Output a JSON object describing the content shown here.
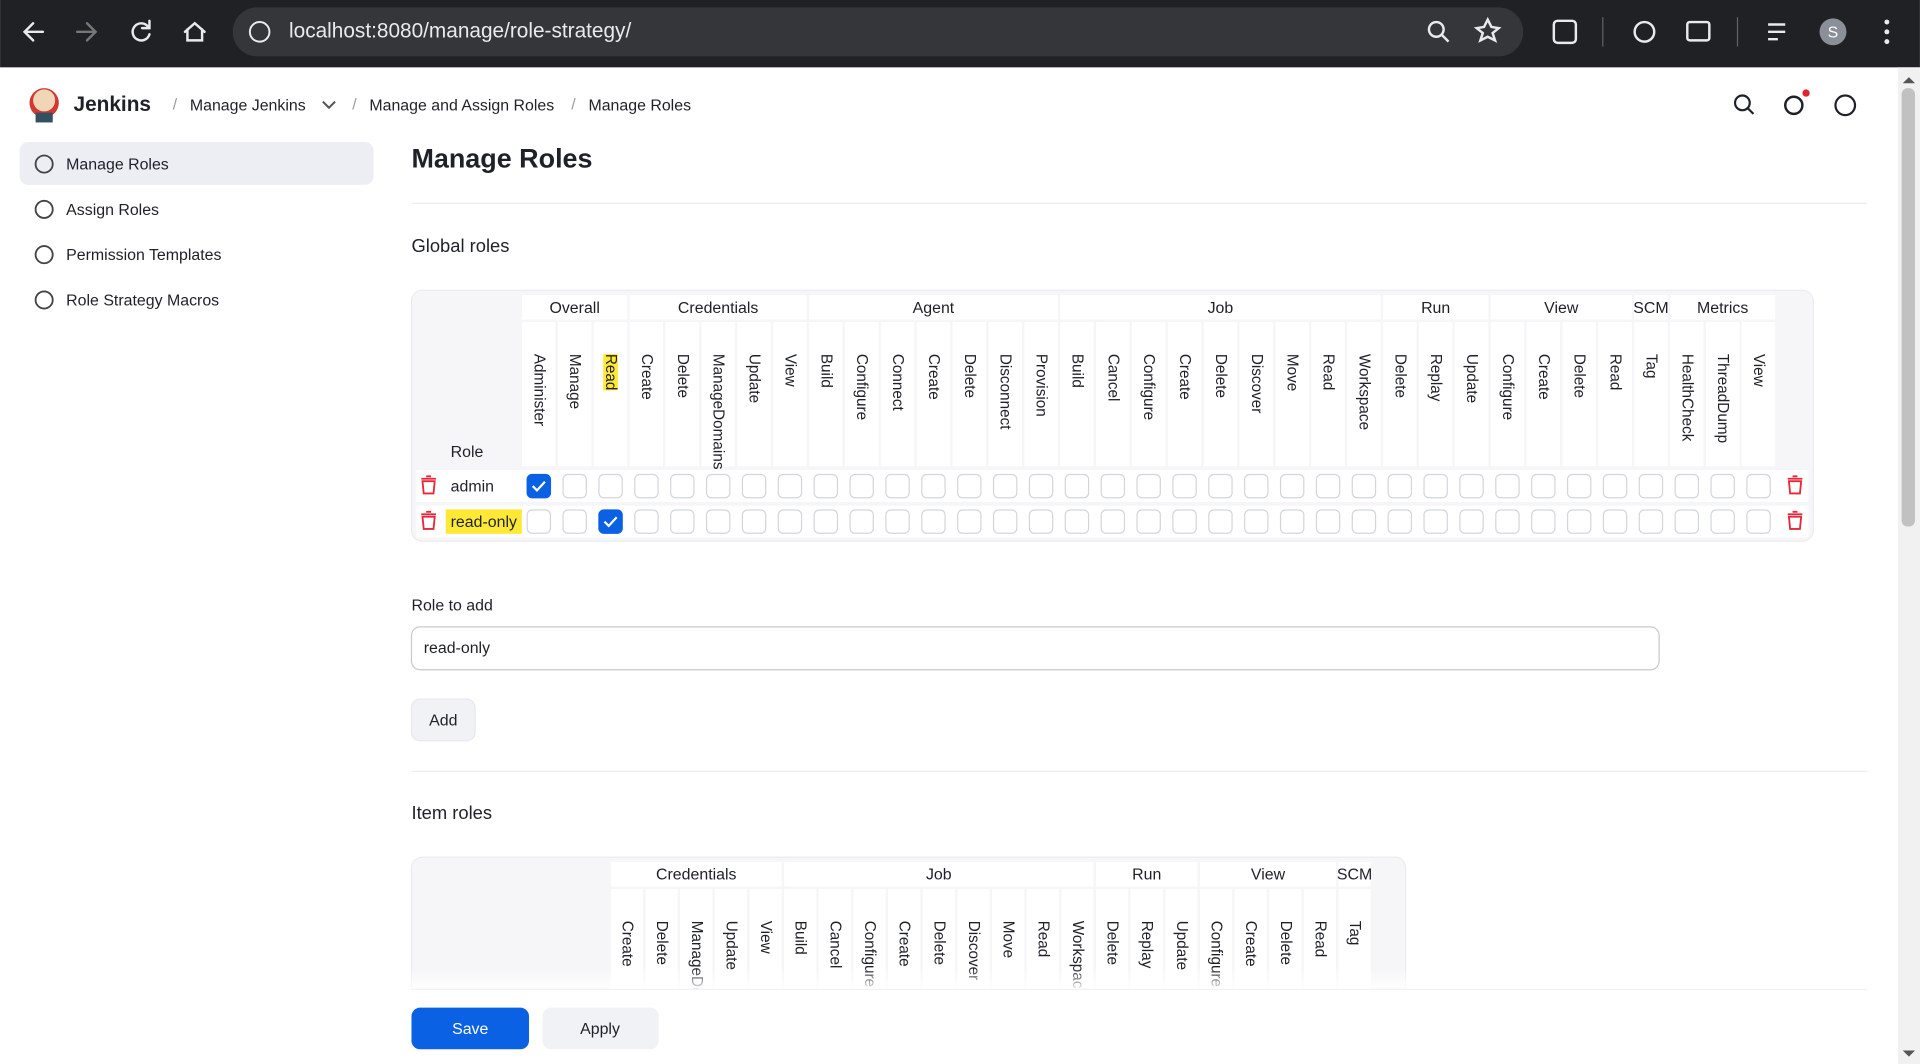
{
  "browser": {
    "url": "localhost:8080/manage/role-strategy/",
    "profile_initial": "S"
  },
  "header": {
    "brand": "Jenkins",
    "breadcrumbs": [
      "Manage Jenkins",
      "Manage and Assign Roles",
      "Manage Roles"
    ]
  },
  "sidebar": {
    "items": [
      "Manage Roles",
      "Assign Roles",
      "Permission Templates",
      "Role Strategy Macros"
    ]
  },
  "page": {
    "title": "Manage Roles"
  },
  "global_roles": {
    "title": "Global roles",
    "role_header": "Role",
    "groups": [
      {
        "name": "Overall",
        "permissions": [
          "Administer",
          "Manage",
          "Read"
        ],
        "highlighted": [
          false,
          false,
          true
        ]
      },
      {
        "name": "Credentials",
        "permissions": [
          "Create",
          "Delete",
          "ManageDomains",
          "Update",
          "View"
        ]
      },
      {
        "name": "Agent",
        "permissions": [
          "Build",
          "Configure",
          "Connect",
          "Create",
          "Delete",
          "Disconnect",
          "Provision"
        ]
      },
      {
        "name": "Job",
        "permissions": [
          "Build",
          "Cancel",
          "Configure",
          "Create",
          "Delete",
          "Discover",
          "Move",
          "Read",
          "Workspace"
        ]
      },
      {
        "name": "Run",
        "permissions": [
          "Delete",
          "Replay",
          "Update"
        ]
      },
      {
        "name": "View",
        "permissions": [
          "Configure",
          "Create",
          "Delete",
          "Read"
        ]
      },
      {
        "name": "SCM",
        "permissions": [
          "Tag"
        ]
      },
      {
        "name": "Metrics",
        "permissions": [
          "HealthCheck",
          "ThreadDump",
          "View"
        ]
      }
    ],
    "rows": [
      {
        "name": "admin",
        "highlighted": false,
        "checked": [
          true,
          false,
          false,
          false,
          false,
          false,
          false,
          false,
          false,
          false,
          false,
          false,
          false,
          false,
          false,
          false,
          false,
          false,
          false,
          false,
          false,
          false,
          false,
          false,
          false,
          false,
          false,
          false,
          false,
          false,
          false,
          false,
          false,
          false,
          false
        ]
      },
      {
        "name": "read-only",
        "highlighted": true,
        "checked": [
          false,
          false,
          true,
          false,
          false,
          false,
          false,
          false,
          false,
          false,
          false,
          false,
          false,
          false,
          false,
          false,
          false,
          false,
          false,
          false,
          false,
          false,
          false,
          false,
          false,
          false,
          false,
          false,
          false,
          false,
          false,
          false,
          false,
          false,
          false
        ]
      }
    ]
  },
  "role_to_add": {
    "label": "Role to add",
    "value": "read-only",
    "button": "Add"
  },
  "item_roles": {
    "title": "Item roles",
    "groups": [
      {
        "name": "Credentials",
        "permissions": [
          "Create",
          "Delete",
          "ManageDomains",
          "Update",
          "View"
        ]
      },
      {
        "name": "Job",
        "permissions": [
          "Build",
          "Cancel",
          "Configure",
          "Create",
          "Delete",
          "Discover",
          "Move",
          "Read",
          "Workspace"
        ]
      },
      {
        "name": "Run",
        "permissions": [
          "Delete",
          "Replay",
          "Update"
        ]
      },
      {
        "name": "View",
        "permissions": [
          "Configure",
          "Create",
          "Delete",
          "Read"
        ]
      },
      {
        "name": "SCM",
        "permissions": [
          "Tag"
        ]
      }
    ]
  },
  "footer": {
    "save": "Save",
    "apply": "Apply"
  }
}
